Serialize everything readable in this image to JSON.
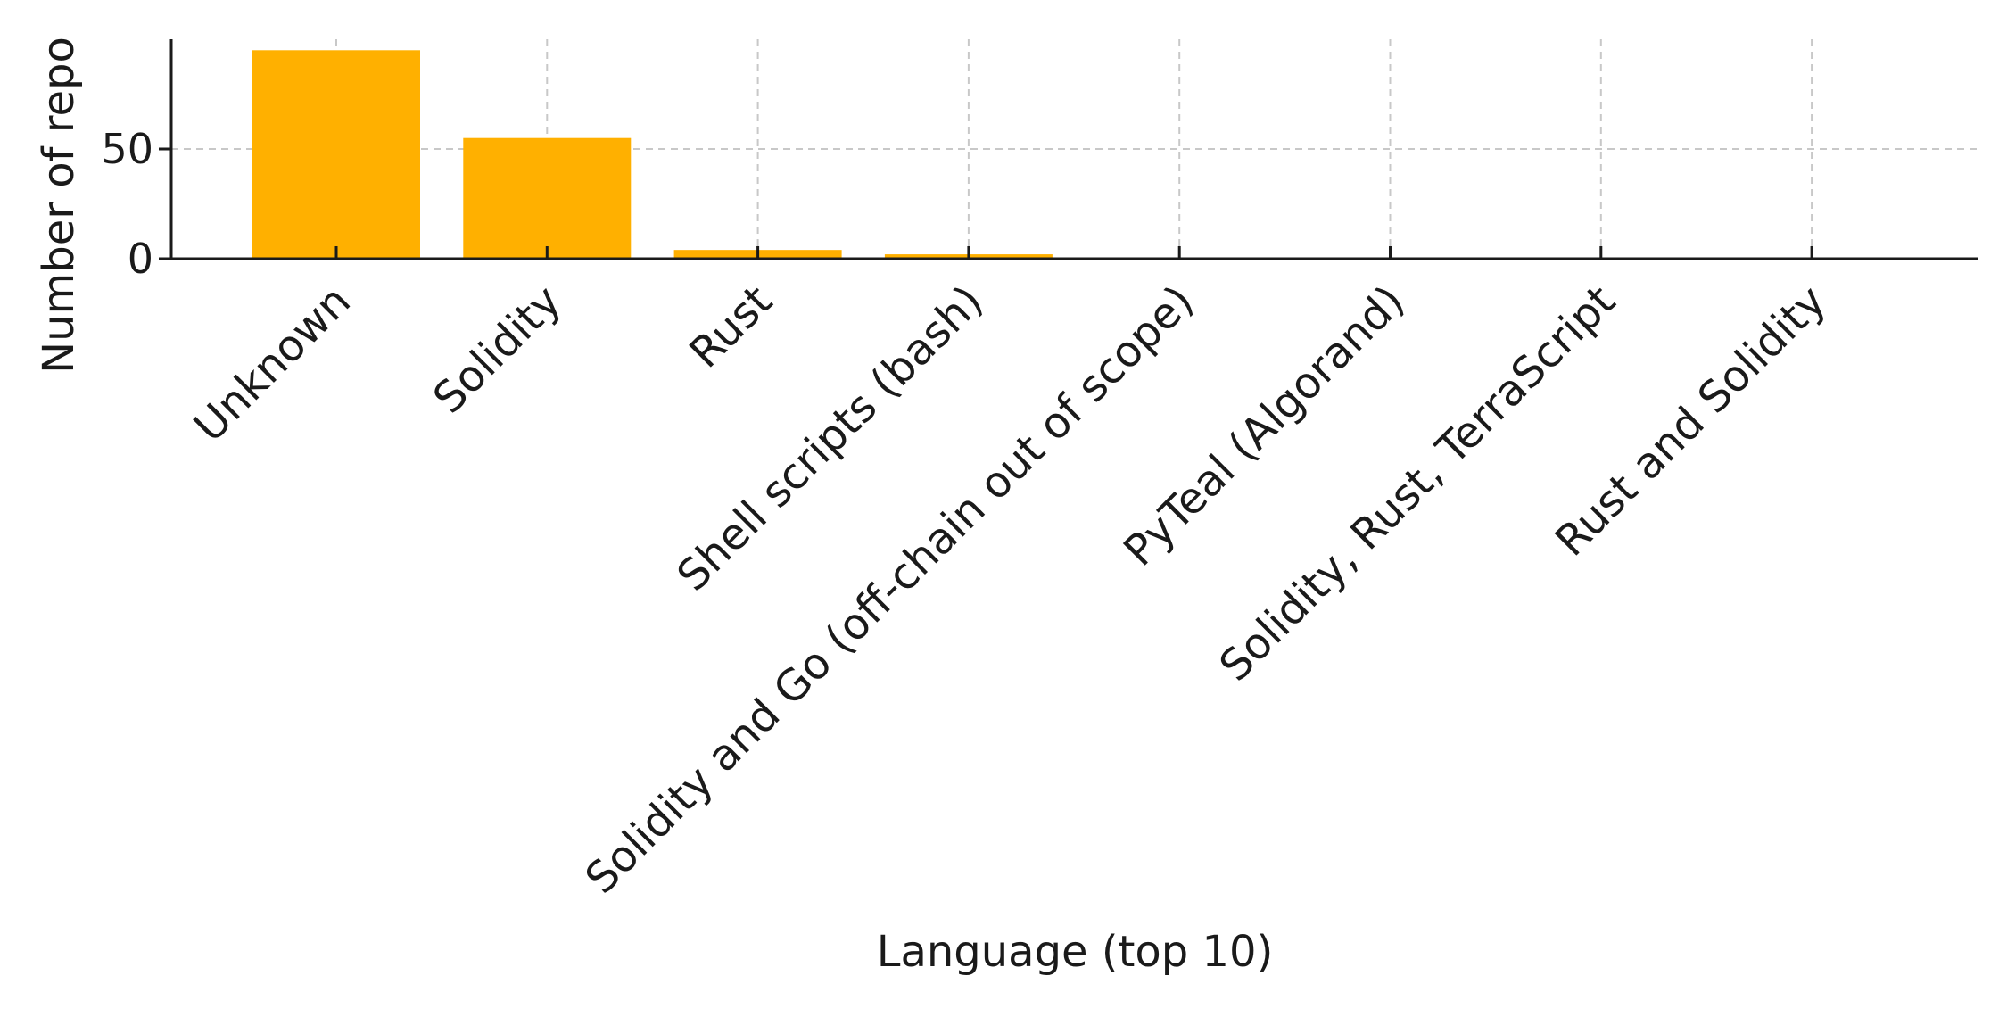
{
  "chart_data": {
    "type": "bar",
    "title": "",
    "xlabel": "Language (top 10)",
    "ylabel": "Number of repo",
    "categories": [
      "Unknown",
      "Solidity",
      "Rust",
      "Shell scripts (bash)",
      "Solidity and Go (off-chain out of scope)",
      "PyTeal (Algorand)",
      "Solidity, Rust, TerraScript",
      "Rust and Solidity"
    ],
    "values": [
      95,
      55,
      4,
      2,
      0,
      0,
      0,
      0
    ],
    "ylim": [
      0,
      100
    ],
    "yticks": [
      0,
      50
    ],
    "ytick_labels": [
      "0",
      "50"
    ],
    "grid": true,
    "bar_color": "#FFB000",
    "gridline_color": "#c8c8c8",
    "axis_color": "#1a1a1a"
  }
}
